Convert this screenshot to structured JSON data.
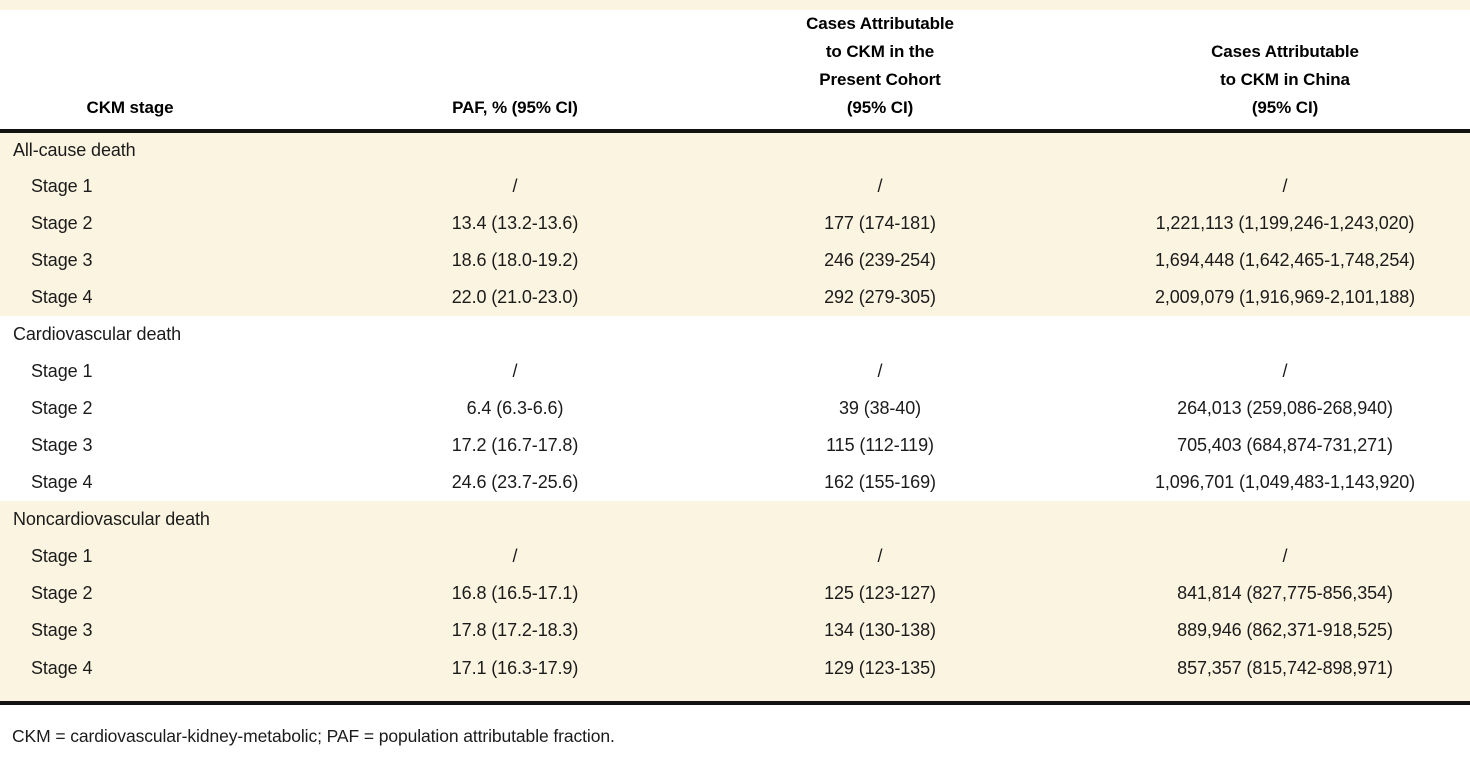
{
  "colors": {
    "section_shading": "#FBF4E0",
    "rule": "#121212",
    "text": "#1B1B1B"
  },
  "table": {
    "columns": [
      {
        "lines": [
          "CKM stage"
        ]
      },
      {
        "lines": [
          "PAF, % (95% CI)"
        ]
      },
      {
        "lines": [
          "Cases Attributable",
          "to CKM in the",
          "Present Cohort",
          "(95% CI)"
        ]
      },
      {
        "lines": [
          "Cases Attributable",
          "to CKM in China",
          "(95% CI)"
        ]
      }
    ],
    "sections": [
      {
        "label": "All-cause death",
        "shaded": true,
        "rows": [
          [
            "Stage 1",
            "/",
            "/",
            "/"
          ],
          [
            "Stage 2",
            "13.4 (13.2-13.6)",
            "177 (174-181)",
            "1,221,113 (1,199,246-1,243,020)"
          ],
          [
            "Stage 3",
            "18.6 (18.0-19.2)",
            "246 (239-254)",
            "1,694,448 (1,642,465-1,748,254)"
          ],
          [
            "Stage 4",
            "22.0 (21.0-23.0)",
            "292 (279-305)",
            "2,009,079 (1,916,969-2,101,188)"
          ]
        ]
      },
      {
        "label": "Cardiovascular death",
        "shaded": false,
        "rows": [
          [
            "Stage 1",
            "/",
            "/",
            "/"
          ],
          [
            "Stage 2",
            "6.4 (6.3-6.6)",
            "39 (38-40)",
            "264,013 (259,086-268,940)"
          ],
          [
            "Stage 3",
            "17.2 (16.7-17.8)",
            "115 (112-119)",
            "705,403 (684,874-731,271)"
          ],
          [
            "Stage 4",
            "24.6 (23.7-25.6)",
            "162 (155-169)",
            "1,096,701 (1,049,483-1,143,920)"
          ]
        ]
      },
      {
        "label": "Noncardiovascular death",
        "shaded": true,
        "rows": [
          [
            "Stage 1",
            "/",
            "/",
            "/"
          ],
          [
            "Stage 2",
            "16.8 (16.5-17.1)",
            "125 (123-127)",
            "841,814 (827,775-856,354)"
          ],
          [
            "Stage 3",
            "17.8 (17.2-18.3)",
            "134 (130-138)",
            "889,946 (862,371-918,525)"
          ],
          [
            "Stage 4",
            "17.1 (16.3-17.9)",
            "129 (123-135)",
            "857,357 (815,742-898,971)"
          ]
        ]
      }
    ],
    "footnote": "CKM = cardiovascular-kidney-metabolic; PAF = population attributable fraction."
  }
}
